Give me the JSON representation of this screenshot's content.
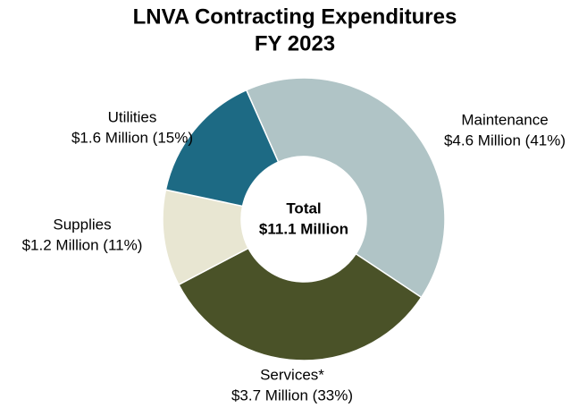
{
  "chart_data": {
    "type": "donut",
    "title": "LNVA Contracting Expenditures",
    "subtitle": "FY 2023",
    "center_label": [
      "Total",
      "$11.1 Million"
    ],
    "categories": [
      "Maintenance",
      "Services*",
      "Supplies",
      "Utilities"
    ],
    "values": [
      41,
      33,
      11,
      15
    ],
    "value_labels": [
      "$4.6 Million (41%)",
      "$3.7 Million (33%)",
      "$1.2 Million (11%)",
      "$1.6 Million (15%)"
    ],
    "colors": [
      "#b0c4c6",
      "#4a5228",
      "#e8e6d2",
      "#1d6a84"
    ]
  }
}
